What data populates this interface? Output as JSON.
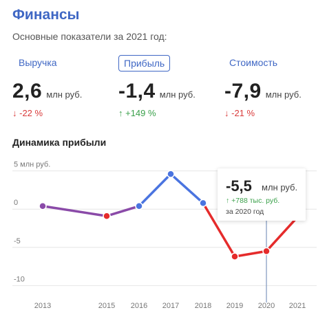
{
  "header": {
    "title": "Финансы",
    "subtitle": "Основные показатели за 2021 год:"
  },
  "tabs": [
    {
      "label": "Выручка",
      "active": false
    },
    {
      "label": "Прибыль",
      "active": true
    },
    {
      "label": "Стоимость",
      "active": false
    }
  ],
  "metrics": [
    {
      "value": "2,6",
      "unit": "млн руб.",
      "delta": "↓ -22 %"
    },
    {
      "value": "-1,4",
      "unit": "млн руб.",
      "delta": "↑ +149 %"
    },
    {
      "value": "-7,9",
      "unit": "млн руб.",
      "delta": "↓ -21 %"
    }
  ],
  "chart_title": "Динамика прибыли",
  "tooltip": {
    "value": "-5,5",
    "unit": "млн руб.",
    "delta": "↑ +788 тыс. руб.",
    "year": "за 2020 год"
  },
  "colors": {
    "accent": "#3f67c4",
    "positive": "#3aa04a",
    "negative": "#d93a3a",
    "line_positive": "#4a74e0",
    "line_negative": "#e52b2b",
    "line_mixed": "#8a4aa8"
  },
  "chart_data": {
    "type": "line",
    "title": "Динамика прибыли",
    "x": [
      "2013",
      "2015",
      "2016",
      "2017",
      "2018",
      "2019",
      "2020",
      "2021"
    ],
    "y": [
      0.4,
      -0.9,
      0.4,
      4.6,
      0.8,
      -6.2,
      -5.5,
      -1.4
    ],
    "ytick_labels": [
      "5 млн руб.",
      "0",
      "-5",
      "-10"
    ],
    "yticks": [
      5,
      0,
      -5,
      -10
    ],
    "ylim": [
      -11.5,
      6.5
    ],
    "grid": true,
    "highlight_x": "2020",
    "legend": "none"
  }
}
